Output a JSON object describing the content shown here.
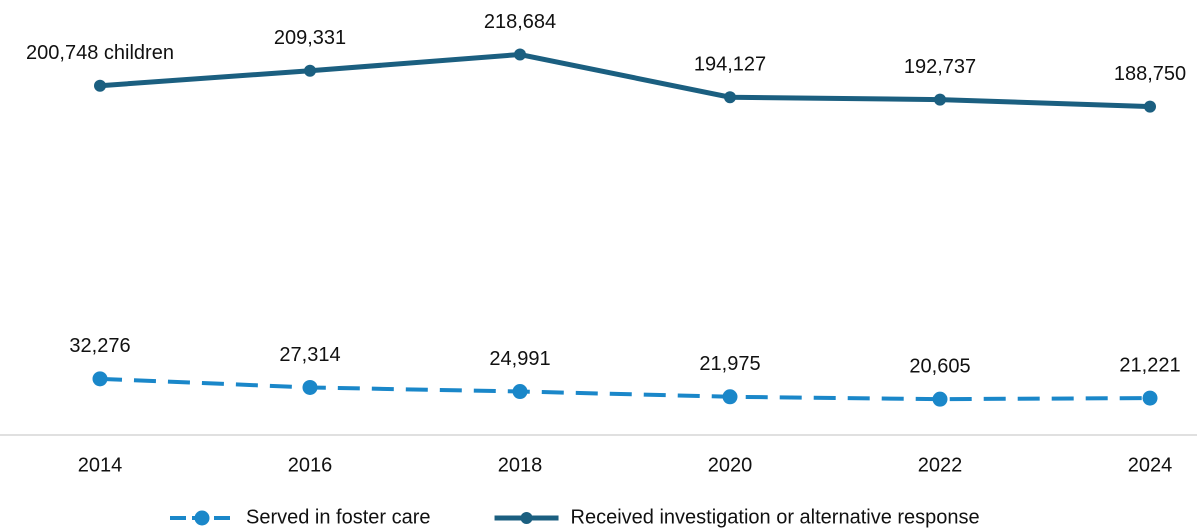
{
  "chart_data": {
    "type": "line",
    "categories": [
      "2014",
      "2016",
      "2018",
      "2020",
      "2022",
      "2024"
    ],
    "series": [
      {
        "name": "Served in foster care",
        "color": "#1a87c9",
        "dashed": true,
        "values": [
          32276,
          27314,
          24991,
          21975,
          20605,
          21221
        ],
        "value_labels": [
          "32,276",
          "27,314",
          "24,991",
          "21,975",
          "20,605",
          "21,221"
        ]
      },
      {
        "name": "Received investigation or alternative response",
        "color": "#1b5f80",
        "dashed": false,
        "values": [
          200748,
          209331,
          218684,
          194127,
          192737,
          188750
        ],
        "value_labels": [
          "200,748 children",
          "209,331",
          "218,684",
          "194,127",
          "192,737",
          "188,750"
        ]
      }
    ],
    "ylim": [
      0,
      250000
    ],
    "legend": "bottom"
  }
}
